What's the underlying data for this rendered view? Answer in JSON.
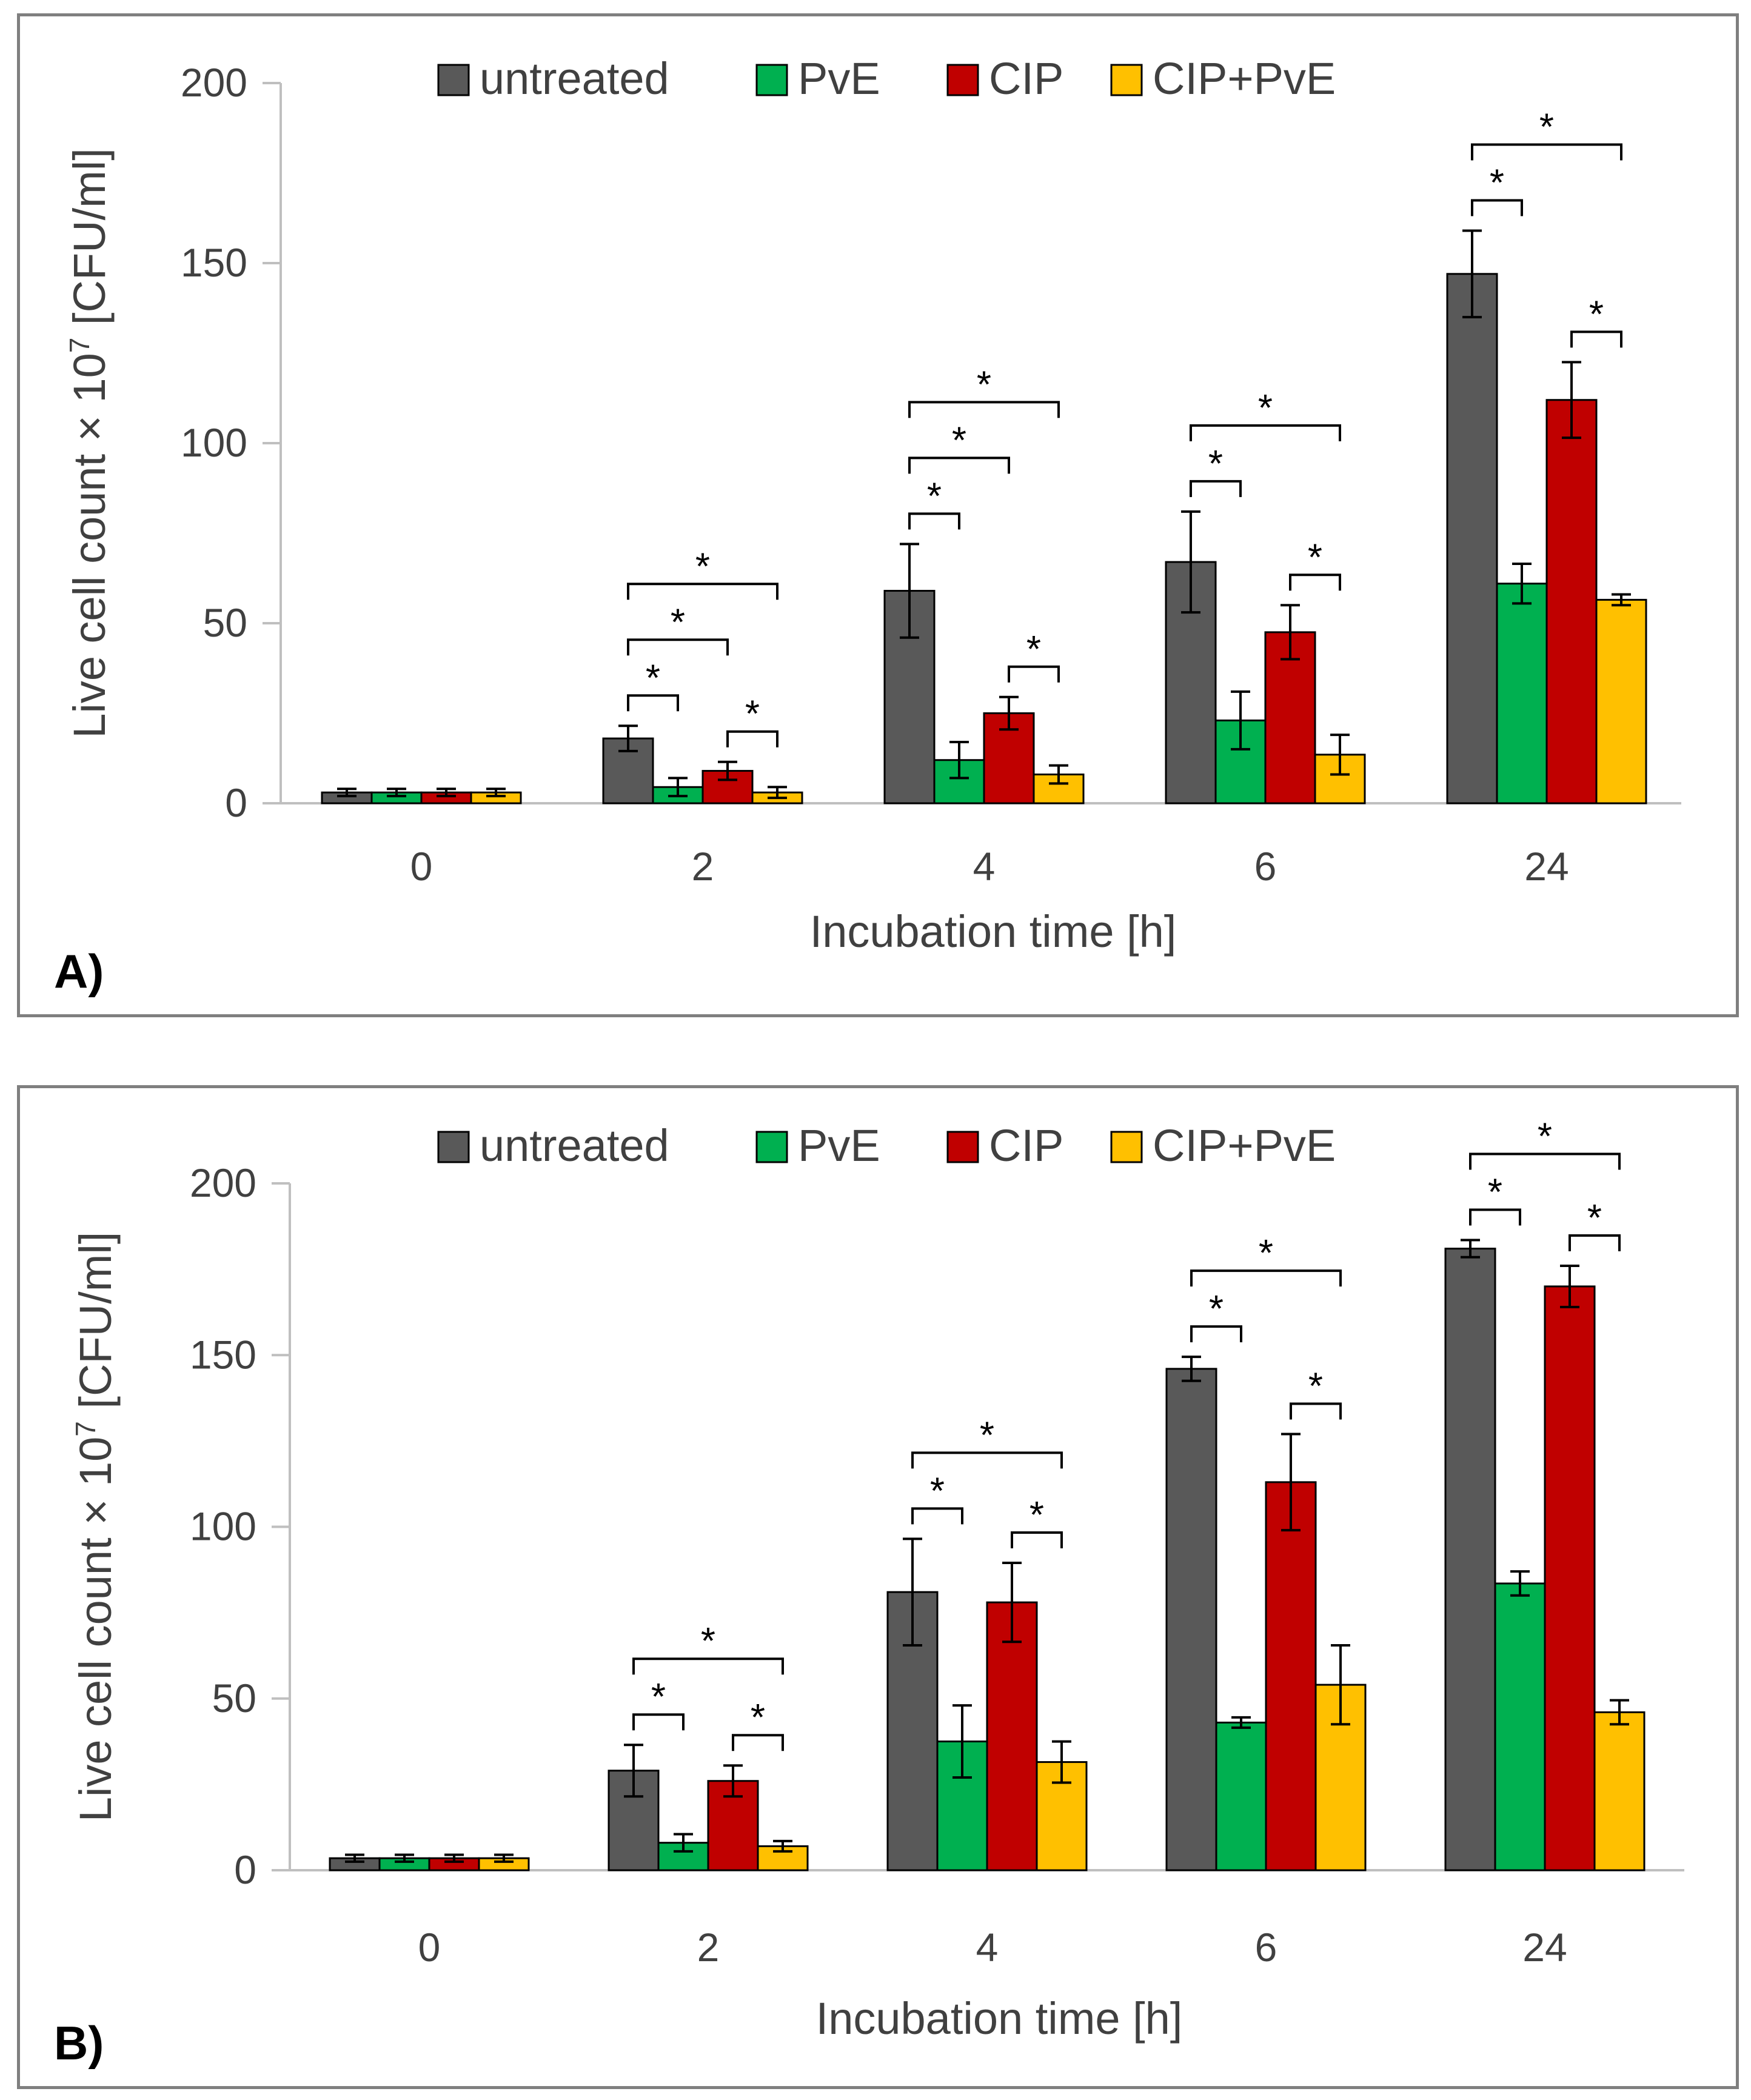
{
  "colors": {
    "untreated": "#595959",
    "PvE": "#00b050",
    "CIP": "#c00000",
    "CIP+PvE": "#ffc000",
    "axis": "#bfbfbf"
  },
  "chart_data": [
    {
      "panel_label": "A)",
      "type": "bar",
      "title": "",
      "xlabel": "Incubation time [h]",
      "ylabel_parts": [
        "Live cell count × 10",
        "7",
        " [CFU/ml]"
      ],
      "ylim": [
        0,
        200
      ],
      "yticks": [
        "0",
        "50",
        "100",
        "150",
        "200"
      ],
      "categories": [
        "0",
        "2",
        "4",
        "6",
        "24"
      ],
      "legend": [
        "untreated",
        "PvE",
        "CIP",
        "CIP+PvE"
      ],
      "series": [
        {
          "name": "untreated",
          "values": [
            3,
            18,
            59,
            67,
            147
          ],
          "errors": [
            1,
            3.5,
            13,
            14,
            12
          ]
        },
        {
          "name": "PvE",
          "values": [
            3,
            4.5,
            12,
            23,
            61
          ],
          "errors": [
            1,
            2.5,
            5,
            8,
            5.5
          ]
        },
        {
          "name": "CIP",
          "values": [
            3,
            9,
            25,
            47.5,
            112
          ],
          "errors": [
            1,
            2.5,
            4.5,
            7.5,
            10.5
          ]
        },
        {
          "name": "CIP+PvE",
          "values": [
            3,
            3,
            8,
            13.5,
            56.5
          ],
          "errors": [
            1,
            1.5,
            2.5,
            5.5,
            1.5
          ]
        }
      ],
      "significance": [
        {
          "group": 1,
          "from": 0,
          "to": 1,
          "level": 1,
          "label": "*"
        },
        {
          "group": 1,
          "from": 0,
          "to": 2,
          "level": 2,
          "label": "*"
        },
        {
          "group": 1,
          "from": 0,
          "to": 3,
          "level": 3,
          "label": "*"
        },
        {
          "group": 1,
          "from": 2,
          "to": 3,
          "level": 0,
          "label": "*"
        },
        {
          "group": 2,
          "from": 0,
          "to": 1,
          "level": 1,
          "label": "*"
        },
        {
          "group": 2,
          "from": 0,
          "to": 2,
          "level": 2,
          "label": "*"
        },
        {
          "group": 2,
          "from": 0,
          "to": 3,
          "level": 3,
          "label": "*"
        },
        {
          "group": 2,
          "from": 2,
          "to": 3,
          "level": 0,
          "label": "*"
        },
        {
          "group": 3,
          "from": 0,
          "to": 1,
          "level": 1,
          "label": "*"
        },
        {
          "group": 3,
          "from": 0,
          "to": 3,
          "level": 2,
          "label": "*"
        },
        {
          "group": 3,
          "from": 2,
          "to": 3,
          "level": 0,
          "label": "*"
        },
        {
          "group": 4,
          "from": 0,
          "to": 1,
          "level": 1,
          "label": "*"
        },
        {
          "group": 4,
          "from": 0,
          "to": 3,
          "level": 2,
          "label": "*"
        },
        {
          "group": 4,
          "from": 2,
          "to": 3,
          "level": 0,
          "label": "*"
        }
      ]
    },
    {
      "panel_label": "B)",
      "type": "bar",
      "title": "",
      "xlabel": "Incubation time [h]",
      "ylabel_parts": [
        "Live cell count × 10",
        "7",
        " [CFU/ml]"
      ],
      "ylim": [
        0,
        200
      ],
      "yticks": [
        "0",
        "50",
        "100",
        "150",
        "200"
      ],
      "categories": [
        "0",
        "2",
        "4",
        "6",
        "24"
      ],
      "legend": [
        "untreated",
        "PvE",
        "CIP",
        "CIP+PvE"
      ],
      "series": [
        {
          "name": "untreated",
          "values": [
            3.5,
            29,
            81,
            146,
            181
          ],
          "errors": [
            1,
            7.5,
            15.5,
            3.5,
            2.5
          ]
        },
        {
          "name": "PvE",
          "values": [
            3.5,
            8,
            37.5,
            43,
            83.5
          ],
          "errors": [
            1,
            2.5,
            10.5,
            1.5,
            3.5
          ]
        },
        {
          "name": "CIP",
          "values": [
            3.5,
            26,
            78,
            113,
            170
          ],
          "errors": [
            1,
            4.5,
            11.5,
            14,
            6
          ]
        },
        {
          "name": "CIP+PvE",
          "values": [
            3.5,
            7,
            31.5,
            54,
            46
          ],
          "errors": [
            1,
            1.5,
            6,
            11.5,
            3.5
          ]
        }
      ],
      "significance": [
        {
          "group": 1,
          "from": 0,
          "to": 1,
          "level": 1,
          "label": "*"
        },
        {
          "group": 1,
          "from": 0,
          "to": 3,
          "level": 2,
          "label": "*"
        },
        {
          "group": 1,
          "from": 2,
          "to": 3,
          "level": 0,
          "label": "*"
        },
        {
          "group": 2,
          "from": 0,
          "to": 1,
          "level": 1,
          "label": "*"
        },
        {
          "group": 2,
          "from": 0,
          "to": 3,
          "level": 2,
          "label": "*"
        },
        {
          "group": 2,
          "from": 2,
          "to": 3,
          "level": 0,
          "label": "*"
        },
        {
          "group": 3,
          "from": 0,
          "to": 1,
          "level": 1,
          "label": "*"
        },
        {
          "group": 3,
          "from": 0,
          "to": 3,
          "level": 2,
          "label": "*"
        },
        {
          "group": 3,
          "from": 2,
          "to": 3,
          "level": 0,
          "label": "*"
        },
        {
          "group": 4,
          "from": 0,
          "to": 1,
          "level": 1,
          "label": "*"
        },
        {
          "group": 4,
          "from": 0,
          "to": 3,
          "level": 2,
          "label": "*"
        },
        {
          "group": 4,
          "from": 2,
          "to": 3,
          "level": 0,
          "label": "*"
        }
      ]
    }
  ]
}
